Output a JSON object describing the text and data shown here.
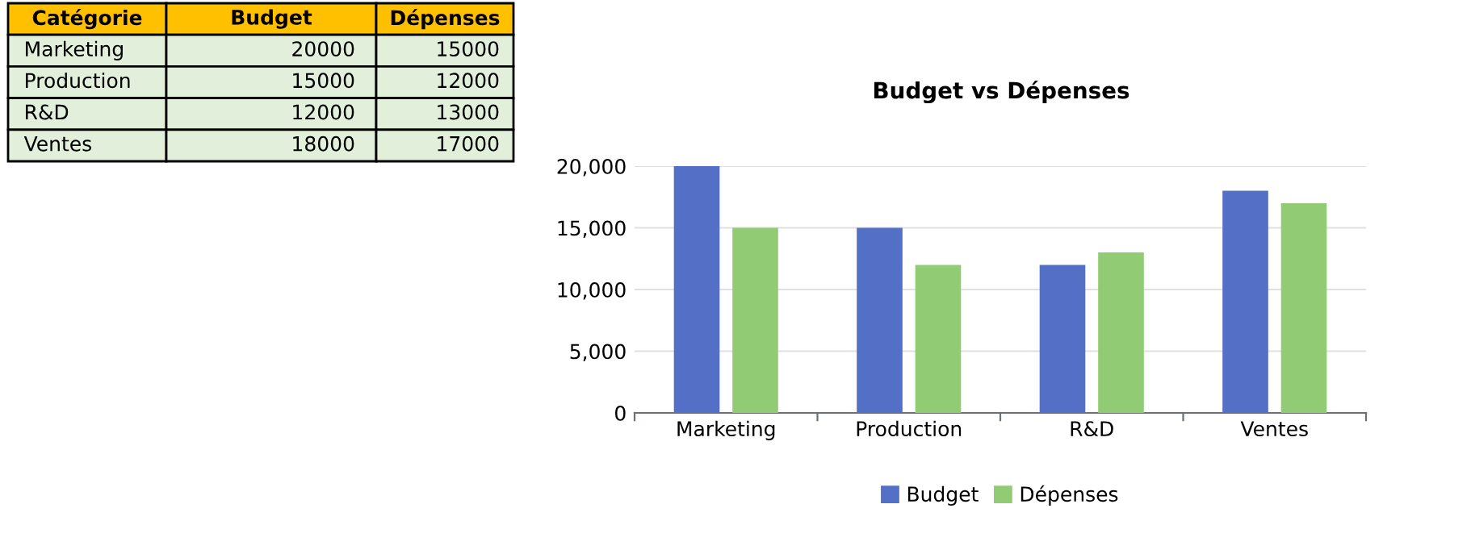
{
  "chart_data": {
    "type": "bar",
    "title": "Budget vs Dépenses",
    "categories": [
      "Marketing",
      "Production",
      "R&D",
      "Ventes"
    ],
    "series": [
      {
        "name": "Budget",
        "color": "#5470c6",
        "values": [
          20000,
          15000,
          12000,
          18000
        ]
      },
      {
        "name": "Dépenses",
        "color": "#91cc75",
        "values": [
          15000,
          12000,
          13000,
          17000
        ]
      }
    ],
    "ylim": [
      0,
      20000
    ],
    "yticks": [
      0,
      {
        "value": 5000,
        "label": "5,000"
      },
      {
        "value": 10000,
        "label": "10,000"
      },
      {
        "value": 15000,
        "label": "15,000"
      },
      {
        "value": 20000,
        "label": "20,000"
      }
    ],
    "grid": "y",
    "legend": "bottom",
    "annotations": [
      "Catégorie",
      "20000",
      "15000",
      "15000",
      "12000",
      "12000",
      "13000",
      "18000",
      "17000"
    ]
  }
}
